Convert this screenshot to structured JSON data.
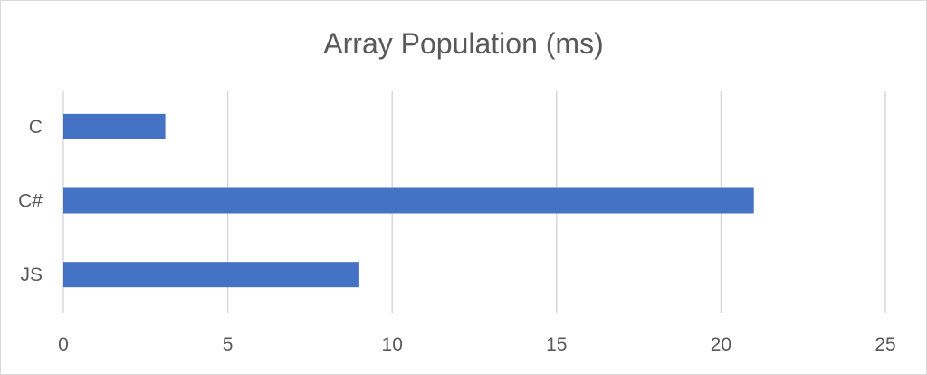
{
  "chart_data": {
    "type": "bar",
    "orientation": "horizontal",
    "title": "Array Population (ms)",
    "xlabel": "",
    "ylabel": "",
    "categories": [
      "C",
      "C#",
      "JS"
    ],
    "values": [
      3.1,
      21,
      9
    ],
    "xlim": [
      0,
      25
    ],
    "x_ticks": [
      "0",
      "5",
      "10",
      "15",
      "20",
      "25"
    ],
    "grid": true,
    "legend": "none",
    "colors": {
      "bar": "#4472c4",
      "grid": "#d9d9d9",
      "text": "#595959"
    }
  }
}
